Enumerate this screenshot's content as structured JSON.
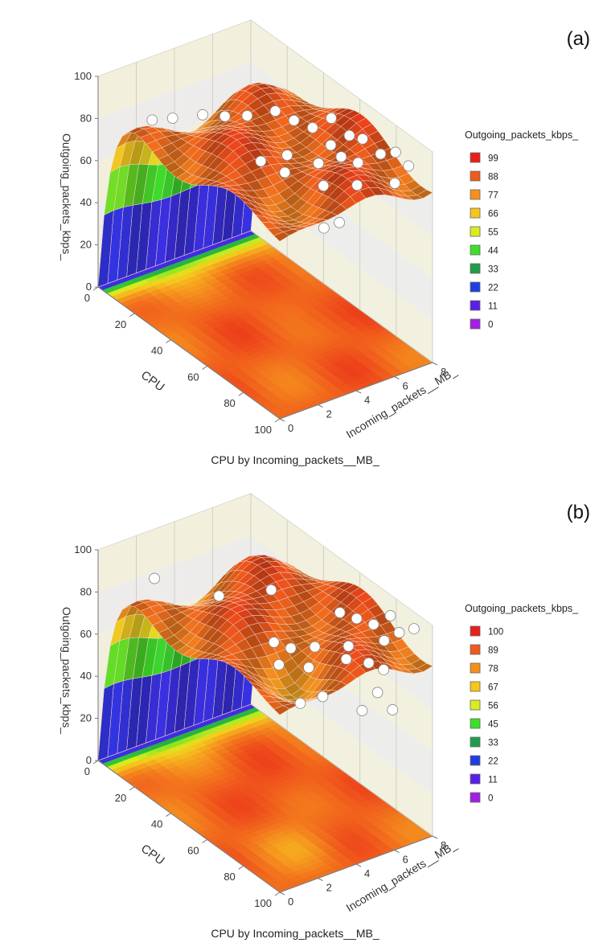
{
  "chart_data": [
    {
      "type": "surface3d",
      "panel_label": "(a)",
      "x_axis_label": "CPU",
      "y_axis_label": "Incoming_packets__MB_",
      "z_axis_label": "Outgoing_packets_kbps_",
      "footer": "CPU by Incoming_packets__MB_",
      "x_ticks": [
        "0",
        "20",
        "40",
        "60",
        "80",
        "100"
      ],
      "y_ticks": [
        "0",
        "2",
        "4",
        "6",
        "8"
      ],
      "z_ticks": [
        "0",
        "20",
        "40",
        "60",
        "80",
        "100"
      ],
      "xlim": [
        0,
        100
      ],
      "ylim": [
        0,
        8
      ],
      "zlim": [
        0,
        100
      ],
      "legend": {
        "title": "Outgoing_packets_kbps_",
        "position": "right",
        "entries": [
          {
            "label": "99",
            "color": "#e8201a"
          },
          {
            "label": "88",
            "color": "#f05a1c"
          },
          {
            "label": "77",
            "color": "#f5901e"
          },
          {
            "label": "66",
            "color": "#f5c71e"
          },
          {
            "label": "55",
            "color": "#d8ec1e"
          },
          {
            "label": "44",
            "color": "#3ede2a"
          },
          {
            "label": "33",
            "color": "#1f9e4a"
          },
          {
            "label": "22",
            "color": "#1f3ee0"
          },
          {
            "label": "11",
            "color": "#5a1fe6"
          },
          {
            "label": "0",
            "color": "#a21fe6"
          }
        ]
      },
      "colors": {
        "surface": "#e2521c",
        "points": "#ffffff"
      },
      "points": [
        {
          "x": 14,
          "y": 1.5,
          "z": 83
        },
        {
          "x": 20,
          "y": 2.0,
          "z": 86
        },
        {
          "x": 26,
          "y": 3.0,
          "z": 88
        },
        {
          "x": 33,
          "y": 3.5,
          "z": 90
        },
        {
          "x": 40,
          "y": 4.0,
          "z": 93
        },
        {
          "x": 45,
          "y": 5.0,
          "z": 95
        },
        {
          "x": 50,
          "y": 5.5,
          "z": 92
        },
        {
          "x": 55,
          "y": 6.0,
          "z": 90
        },
        {
          "x": 60,
          "y": 6.5,
          "z": 96
        },
        {
          "x": 65,
          "y": 6.0,
          "z": 88
        },
        {
          "x": 70,
          "y": 6.5,
          "z": 94
        },
        {
          "x": 72,
          "y": 7.0,
          "z": 92
        },
        {
          "x": 76,
          "y": 5.5,
          "z": 91
        },
        {
          "x": 80,
          "y": 6.0,
          "z": 89
        },
        {
          "x": 84,
          "y": 6.8,
          "z": 93
        },
        {
          "x": 88,
          "y": 7.2,
          "z": 95
        },
        {
          "x": 92,
          "y": 7.5,
          "z": 90
        },
        {
          "x": 95,
          "y": 6.5,
          "z": 87
        },
        {
          "x": 58,
          "y": 3.0,
          "z": 86
        },
        {
          "x": 62,
          "y": 4.0,
          "z": 88
        },
        {
          "x": 66,
          "y": 3.5,
          "z": 84
        },
        {
          "x": 74,
          "y": 4.5,
          "z": 90
        },
        {
          "x": 82,
          "y": 4.0,
          "z": 86
        },
        {
          "x": 90,
          "y": 5.0,
          "z": 88
        },
        {
          "x": 96,
          "y": 3.5,
          "z": 79
        },
        {
          "x": 98,
          "y": 2.5,
          "z": 81
        }
      ]
    },
    {
      "type": "surface3d",
      "panel_label": "(b)",
      "x_axis_label": "CPU",
      "y_axis_label": "Incoming_packets__MB_",
      "z_axis_label": "Outgoing_packets_kbps_",
      "footer": "CPU by Incoming_packets__MB_",
      "x_ticks": [
        "0",
        "20",
        "40",
        "60",
        "80",
        "100"
      ],
      "y_ticks": [
        "0",
        "2",
        "4",
        "6",
        "8"
      ],
      "z_ticks": [
        "0",
        "20",
        "40",
        "60",
        "80",
        "100"
      ],
      "xlim": [
        0,
        100
      ],
      "ylim": [
        0,
        8
      ],
      "zlim": [
        0,
        100
      ],
      "legend": {
        "title": "Outgoing_packets_kbps_",
        "position": "right",
        "entries": [
          {
            "label": "100",
            "color": "#e8201a"
          },
          {
            "label": "89",
            "color": "#f05a1c"
          },
          {
            "label": "78",
            "color": "#f5901e"
          },
          {
            "label": "67",
            "color": "#f5c71e"
          },
          {
            "label": "56",
            "color": "#d8ec1e"
          },
          {
            "label": "45",
            "color": "#3ede2a"
          },
          {
            "label": "33",
            "color": "#1f9e4a"
          },
          {
            "label": "22",
            "color": "#1f3ee0"
          },
          {
            "label": "11",
            "color": "#5a1fe6"
          },
          {
            "label": "0",
            "color": "#a21fe6"
          }
        ]
      },
      "colors": {
        "surface": "#e2521c",
        "points": "#ffffff"
      },
      "points": [
        {
          "x": 10,
          "y": 2.0,
          "z": 86
        },
        {
          "x": 35,
          "y": 3.0,
          "z": 90
        },
        {
          "x": 48,
          "y": 4.5,
          "z": 96
        },
        {
          "x": 70,
          "y": 6.0,
          "z": 94
        },
        {
          "x": 74,
          "y": 6.5,
          "z": 92
        },
        {
          "x": 78,
          "y": 7.0,
          "z": 90
        },
        {
          "x": 82,
          "y": 7.5,
          "z": 95
        },
        {
          "x": 86,
          "y": 6.8,
          "z": 88
        },
        {
          "x": 90,
          "y": 7.2,
          "z": 93
        },
        {
          "x": 94,
          "y": 7.6,
          "z": 96
        },
        {
          "x": 80,
          "y": 5.5,
          "z": 86
        },
        {
          "x": 84,
          "y": 5.0,
          "z": 84
        },
        {
          "x": 88,
          "y": 5.8,
          "z": 82
        },
        {
          "x": 92,
          "y": 6.2,
          "z": 80
        },
        {
          "x": 60,
          "y": 3.5,
          "z": 82
        },
        {
          "x": 64,
          "y": 4.0,
          "z": 80
        },
        {
          "x": 68,
          "y": 3.0,
          "z": 78
        },
        {
          "x": 72,
          "y": 4.5,
          "z": 84
        },
        {
          "x": 76,
          "y": 3.8,
          "z": 79
        },
        {
          "x": 96,
          "y": 5.5,
          "z": 74
        },
        {
          "x": 98,
          "y": 4.5,
          "z": 70
        },
        {
          "x": 99,
          "y": 6.0,
          "z": 66
        },
        {
          "x": 85,
          "y": 2.5,
          "z": 72
        },
        {
          "x": 90,
          "y": 3.2,
          "z": 76
        }
      ]
    }
  ]
}
